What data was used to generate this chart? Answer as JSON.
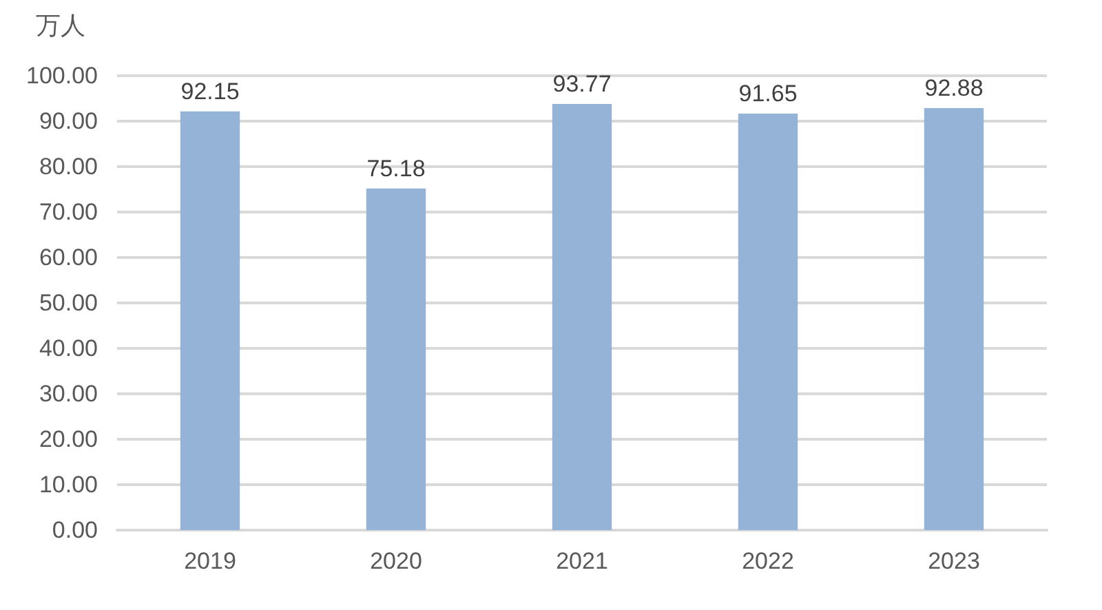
{
  "chart_data": {
    "type": "bar",
    "ylabel": "万人",
    "categories": [
      "2019",
      "2020",
      "2021",
      "2022",
      "2023"
    ],
    "values": [
      92.15,
      75.18,
      93.77,
      91.65,
      92.88
    ],
    "color": "#95b3d7",
    "ylim": [
      0,
      100
    ],
    "yticks": [
      {
        "value": 0,
        "label": "0.00"
      },
      {
        "value": 10,
        "label": "10.00"
      },
      {
        "value": 20,
        "label": "20.00"
      },
      {
        "value": 30,
        "label": "30.00"
      },
      {
        "value": 40,
        "label": "40.00"
      },
      {
        "value": 50,
        "label": "50.00"
      },
      {
        "value": 60,
        "label": "60.00"
      },
      {
        "value": 70,
        "label": "70.00"
      },
      {
        "value": 80,
        "label": "80.00"
      },
      {
        "value": 90,
        "label": "90.00"
      },
      {
        "value": 100,
        "label": "100.00"
      }
    ],
    "grid": true,
    "data_labels": true
  }
}
